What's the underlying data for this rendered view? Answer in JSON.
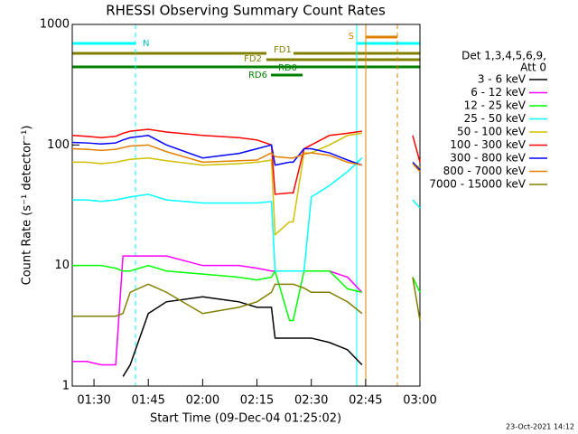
{
  "chart_data": {
    "type": "line",
    "title": "RHESSI Observing Summary Count Rates",
    "x_label": "Start Time (09-Dec-04 01:25:02)",
    "y_label": "Count Rate (s⁻¹ detector⁻¹)",
    "legend_title": [
      "Det 1,3,4,5,6,9,",
      "Att 0"
    ],
    "footer": "23-Oct-2021 14:12",
    "annotations": [
      "N",
      "S",
      "FD1",
      "FD2",
      "RD0",
      "RD6"
    ],
    "log_y": true,
    "xlim": [
      "01:24",
      "03:00"
    ],
    "xticks": [
      "01:30",
      "01:45",
      "02:00",
      "02:15",
      "02:30",
      "02:45",
      "03:00"
    ],
    "ylim": [
      1,
      1000
    ],
    "yticks": [
      1,
      10,
      100,
      1000
    ],
    "x": [
      "01:24",
      "01:28",
      "01:32",
      "01:36",
      "01:38",
      "01:40",
      "01:45",
      "01:50",
      "02:00",
      "02:10",
      "02:15",
      "02:19",
      "02:20",
      "02:24",
      "02:25",
      "02:28",
      "02:30",
      "02:35",
      "02:40",
      "02:44",
      "02:50",
      "02:58",
      "03:00"
    ],
    "series": [
      {
        "name": "3 - 6 keV",
        "color": "#000000",
        "values": [
          null,
          null,
          null,
          null,
          1.2,
          1.5,
          4,
          5,
          5.5,
          5,
          4.5,
          4.5,
          2.5,
          2.5,
          2.5,
          2.5,
          2.5,
          2.3,
          2,
          1.5,
          null,
          null,
          null
        ]
      },
      {
        "name": "6 - 12 keV",
        "color": "#ff00ff",
        "values": [
          1.6,
          1.6,
          1.5,
          1.5,
          12,
          12,
          12,
          12,
          10,
          10,
          9.5,
          9,
          9,
          9,
          9,
          9,
          9,
          9,
          8,
          6,
          null,
          null,
          null
        ]
      },
      {
        "name": "12 - 25 keV",
        "color": "#00ff00",
        "values": [
          10,
          10,
          10,
          9.5,
          9,
          9,
          10,
          9,
          8.5,
          8,
          7.6,
          8,
          9,
          3.5,
          3.5,
          9,
          9,
          9,
          6.4,
          6,
          null,
          8,
          6
        ]
      },
      {
        "name": "25 - 50 keV",
        "color": "#00ffff",
        "values": [
          35,
          35,
          34,
          35,
          36,
          37,
          39,
          35,
          33,
          33,
          33,
          34,
          9,
          9,
          9,
          9,
          37,
          46,
          60,
          78,
          null,
          35,
          30
        ]
      },
      {
        "name": "50 - 100 keV",
        "color": "#d0c000",
        "values": [
          72,
          72,
          70,
          72,
          74,
          76,
          78,
          74,
          68,
          70,
          72,
          75,
          18,
          23,
          23,
          86,
          86,
          100,
          120,
          125,
          null,
          70,
          65
        ]
      },
      {
        "name": "100 - 300 keV",
        "color": "#ff0000",
        "values": [
          120,
          118,
          115,
          118,
          125,
          130,
          135,
          128,
          120,
          115,
          110,
          100,
          39,
          40,
          40,
          93,
          100,
          120,
          125,
          130,
          null,
          120,
          72
        ]
      },
      {
        "name": "300 - 800 keV",
        "color": "#0000ff",
        "values": [
          105,
          104,
          102,
          104,
          110,
          115,
          120,
          100,
          78,
          85,
          93,
          100,
          68,
          72,
          72,
          93,
          93,
          86,
          75,
          68,
          null,
          72,
          62
        ]
      },
      {
        "name": "800 - 7000 keV",
        "color": "#e08000",
        "values": [
          93,
          92,
          90,
          92,
          95,
          98,
          100,
          88,
          72,
          74,
          75,
          86,
          80,
          78,
          78,
          84,
          86,
          82,
          72,
          68,
          null,
          70,
          60
        ]
      },
      {
        "name": "7000 - 15000 keV",
        "color": "#808000",
        "values": [
          3.8,
          3.8,
          3.8,
          3.8,
          4,
          6,
          7,
          6,
          4,
          4.5,
          5,
          6,
          7,
          7,
          7,
          6.5,
          6,
          6,
          5,
          4,
          null,
          8,
          3.5
        ]
      }
    ]
  }
}
